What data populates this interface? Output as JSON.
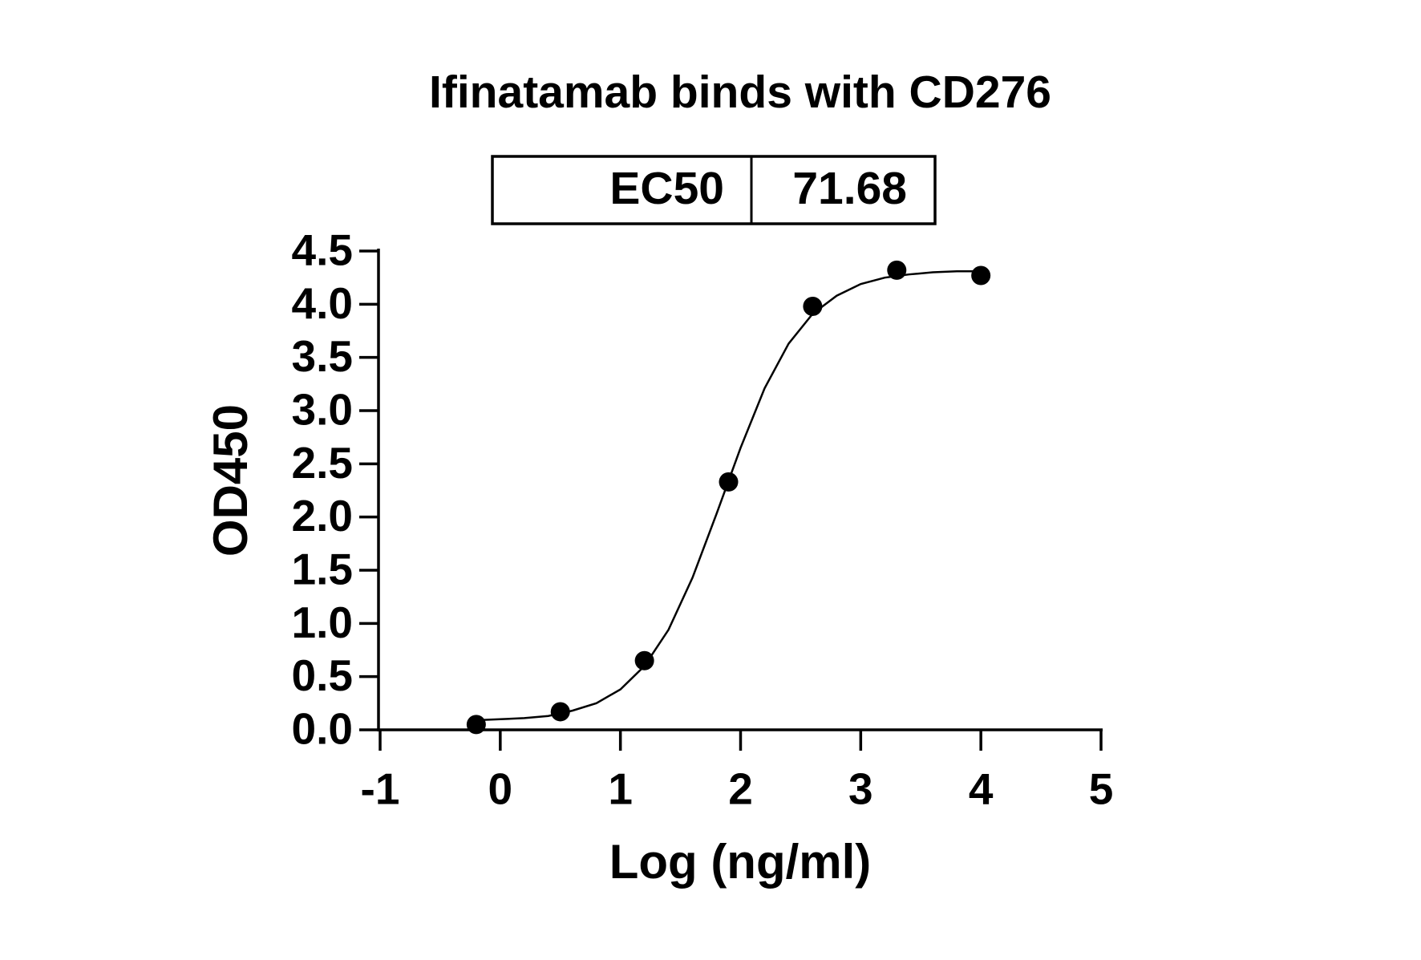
{
  "chart_data": {
    "type": "scatter",
    "title": "Ifinatamab binds with CD276",
    "ec50_table": {
      "label": "EC50",
      "value": 71.68
    },
    "x_label": "Log (ng/ml)",
    "y_label": "OD450",
    "xlim": [
      -1,
      5
    ],
    "xticks": [
      -1,
      0,
      1,
      2,
      3,
      4,
      5
    ],
    "ylim": [
      0,
      4.5
    ],
    "yticks": [
      {
        "value": 0,
        "label": "0.0"
      },
      0.5,
      {
        "value": 1,
        "label": "1.0"
      },
      1.5,
      {
        "value": 2,
        "label": "2.0"
      },
      2.5,
      {
        "value": 3,
        "label": "3.0"
      },
      3.5,
      {
        "value": 4,
        "label": "4.0"
      },
      4.5
    ],
    "series": [
      {
        "kind": "points",
        "color": "#000000",
        "x": [
          -0.2,
          0.5,
          1.2,
          1.9,
          2.6,
          3.3,
          4.0
        ],
        "values": [
          0.05,
          0.17,
          0.65,
          2.33,
          3.98,
          4.32,
          4.27
        ]
      },
      {
        "kind": "curve",
        "color": "#000000",
        "x": [
          -0.2,
          0,
          0.2,
          0.4,
          0.6,
          0.8,
          1.0,
          1.2,
          1.4,
          1.6,
          1.8,
          2.0,
          2.2,
          2.4,
          2.6,
          2.8,
          3.0,
          3.2,
          3.4,
          3.6,
          3.8,
          4.0
        ],
        "values": [
          0.09,
          0.1,
          0.11,
          0.13,
          0.18,
          0.25,
          0.38,
          0.6,
          0.94,
          1.43,
          2.03,
          2.65,
          3.21,
          3.63,
          3.91,
          4.08,
          4.19,
          4.25,
          4.28,
          4.3,
          4.31,
          4.31
        ]
      }
    ]
  }
}
